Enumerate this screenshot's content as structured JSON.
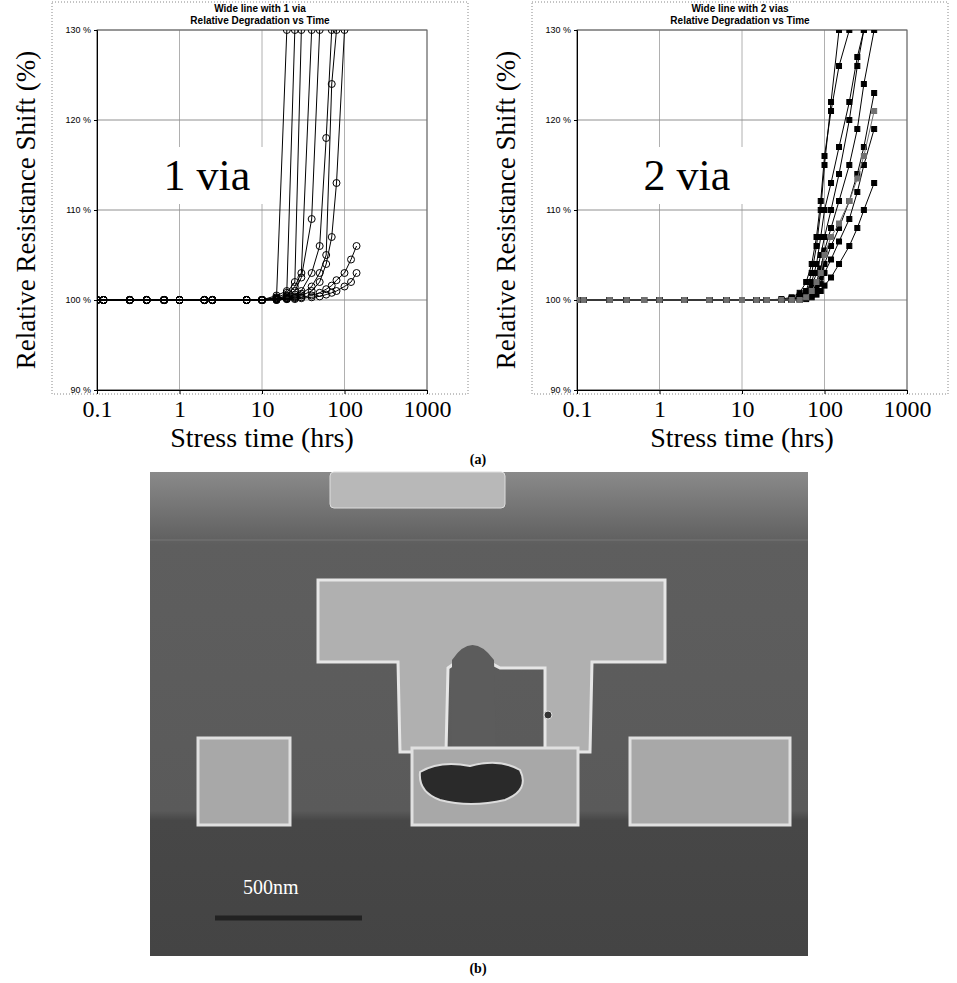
{
  "chart_data": [
    {
      "type": "line",
      "title": "Wide line with 1 via",
      "subtitle": "Relative Degradation vs Time",
      "annotations": [
        "1 via"
      ],
      "xlabel": "Stress time (hrs)",
      "ylabel": "Relative Resistance Shift (%)",
      "log": "x",
      "grid": true,
      "marker": "open-circle",
      "line_style": "solid",
      "xlim": [
        0.1,
        1000
      ],
      "xticks": [
        0.1,
        1,
        10,
        100,
        1000
      ],
      "ylim": [
        90,
        130
      ],
      "yticks": [
        {
          "value": 90,
          "label": "90 %"
        },
        {
          "value": 100,
          "label": "100 %"
        },
        {
          "value": 110,
          "label": "110 %"
        },
        {
          "value": 120,
          "label": "120 %"
        },
        {
          "value": 130,
          "label": "130 %"
        }
      ],
      "x": [
        0.1,
        0.12,
        0.25,
        0.4,
        0.65,
        1,
        2,
        2.5,
        6.5,
        10,
        15,
        20,
        25,
        30,
        40,
        50,
        60,
        70,
        80,
        100,
        120,
        140
      ],
      "series": [
        {
          "color": "#000000",
          "values": [
            100,
            100,
            100,
            100,
            100,
            100,
            100,
            100,
            100,
            100,
            100.3,
            130,
            null,
            null,
            null,
            null,
            null,
            null,
            null,
            null,
            null,
            null
          ]
        },
        {
          "color": "#000000",
          "values": [
            100,
            100,
            100,
            100,
            100,
            100,
            100,
            100,
            100,
            100,
            100.5,
            101,
            130,
            null,
            null,
            null,
            null,
            null,
            null,
            null,
            null,
            null
          ]
        },
        {
          "color": "#000000",
          "values": [
            100,
            100,
            100,
            100,
            100,
            100,
            100,
            100,
            100,
            100,
            100.2,
            100.8,
            102,
            130,
            null,
            null,
            null,
            null,
            null,
            null,
            null,
            null
          ]
        },
        {
          "color": "#000000",
          "values": [
            100,
            100,
            100,
            100,
            100,
            100,
            100,
            100,
            100,
            100,
            100.1,
            100.5,
            101.5,
            103,
            130,
            null,
            null,
            null,
            null,
            null,
            null,
            null
          ]
        },
        {
          "color": "#000000",
          "values": [
            100,
            100,
            100,
            100,
            100,
            100,
            100,
            100,
            100,
            100,
            100.2,
            100.4,
            101,
            102.5,
            109,
            130,
            null,
            null,
            null,
            null,
            null,
            null
          ]
        },
        {
          "color": "#000000",
          "values": [
            100,
            100,
            100,
            100,
            100,
            100,
            100,
            100,
            100,
            100,
            100.1,
            100.3,
            100.6,
            101,
            103,
            106,
            118,
            130,
            null,
            null,
            null,
            null
          ]
        },
        {
          "color": "#000000",
          "values": [
            100,
            100,
            100,
            100,
            100,
            100,
            100,
            100,
            100,
            100,
            100.1,
            100.2,
            100.4,
            100.7,
            101.5,
            103,
            105,
            124,
            130,
            null,
            null,
            null
          ]
        },
        {
          "color": "#000000",
          "values": [
            100,
            100,
            100,
            100,
            100,
            100,
            100,
            100,
            100,
            100,
            100.1,
            100.2,
            100.3,
            100.5,
            101,
            102,
            104,
            107,
            113,
            130,
            null,
            null
          ]
        },
        {
          "color": "#000000",
          "values": [
            100,
            100,
            100,
            100,
            100,
            100,
            100,
            100,
            100,
            100,
            100,
            100.1,
            100.2,
            100.3,
            100.5,
            100.8,
            101.2,
            101.6,
            102.2,
            103,
            104.5,
            106
          ]
        },
        {
          "color": "#000000",
          "values": [
            100,
            100,
            100,
            100,
            100,
            100,
            100,
            100,
            100,
            100,
            100,
            100.1,
            100.1,
            100.2,
            100.3,
            100.4,
            100.6,
            100.8,
            101,
            101.5,
            102,
            103
          ]
        }
      ]
    },
    {
      "type": "line",
      "title": "Wide line with 2 vias",
      "subtitle": "Relative Degradation vs Time",
      "annotations": [
        "2 via"
      ],
      "xlabel": "Stress time (hrs)",
      "ylabel": "Relative Resistance Shift (%)",
      "log": "x",
      "grid": true,
      "marker": "square",
      "line_style": "solid",
      "xlim": [
        0.1,
        1000
      ],
      "xticks": [
        0.1,
        1,
        10,
        100,
        1000
      ],
      "ylim": [
        90,
        130
      ],
      "yticks": [
        {
          "value": 90,
          "label": "90 %"
        },
        {
          "value": 100,
          "label": "100 %"
        },
        {
          "value": 110,
          "label": "110 %"
        },
        {
          "value": 120,
          "label": "120 %"
        },
        {
          "value": 130,
          "label": "130 %"
        }
      ],
      "x": [
        0.1,
        0.12,
        0.25,
        0.4,
        0.65,
        1,
        2,
        4,
        6.5,
        10,
        15,
        20,
        30,
        40,
        50,
        60,
        70,
        80,
        90,
        100,
        120,
        150,
        200,
        250,
        300,
        400
      ],
      "series": [
        {
          "color": "#000000",
          "values": [
            100,
            100,
            100,
            100,
            100,
            100,
            100,
            100,
            100,
            100,
            100,
            100,
            100,
            100.2,
            100.5,
            101,
            103,
            106,
            110,
            115,
            122,
            130,
            null,
            null,
            null,
            null
          ]
        },
        {
          "color": "#000000",
          "values": [
            100,
            100,
            100,
            100,
            100,
            100,
            100,
            100,
            100,
            100,
            100,
            100,
            100,
            100.1,
            100.3,
            100.6,
            101.5,
            103,
            105,
            107,
            110,
            114,
            120,
            126,
            130,
            null
          ]
        },
        {
          "color": "#000000",
          "values": [
            100,
            100,
            100,
            100,
            100,
            100,
            100,
            100,
            100,
            100,
            100,
            100,
            100,
            100,
            100.2,
            100.4,
            100.8,
            101.5,
            102.5,
            104,
            106,
            108,
            111,
            114,
            117,
            123
          ]
        },
        {
          "color": "#000000",
          "values": [
            100,
            100,
            100,
            100,
            100,
            100,
            100,
            100,
            100,
            100,
            100,
            100,
            100,
            100.1,
            100.4,
            101,
            102,
            104,
            107,
            110,
            113,
            117,
            122,
            127,
            130,
            null
          ]
        },
        {
          "color": "#000000",
          "values": [
            100,
            100,
            100,
            100,
            100,
            100,
            100,
            100,
            100,
            100,
            100,
            100,
            100,
            100,
            100.1,
            100.3,
            100.6,
            101,
            101.8,
            103,
            104.5,
            106.5,
            109,
            112,
            115,
            119
          ]
        },
        {
          "color": "#000000",
          "values": [
            100,
            100,
            100,
            100,
            100,
            100,
            100,
            100,
            100,
            100,
            100,
            100,
            100.1,
            100.3,
            100.8,
            102,
            104,
            107,
            111,
            116,
            121,
            126,
            130,
            null,
            null,
            null
          ]
        },
        {
          "color": "#000000",
          "values": [
            100,
            100,
            100,
            100,
            100,
            100,
            100,
            100,
            100,
            100,
            100,
            100,
            100,
            100.1,
            100.2,
            100.5,
            101,
            102,
            103.5,
            105.5,
            108,
            111,
            115,
            119,
            124,
            130
          ]
        },
        {
          "color": "#000000",
          "values": [
            100,
            100,
            100,
            100,
            100,
            100,
            100,
            100,
            100,
            100,
            100,
            100,
            100,
            100,
            100,
            100.1,
            100.3,
            100.6,
            101,
            101.6,
            102.5,
            104,
            106,
            108,
            110,
            113
          ]
        },
        {
          "color": "#707070",
          "values": [
            100,
            100,
            100,
            100,
            100,
            100,
            100,
            100,
            100,
            100,
            100,
            100,
            100,
            100,
            100,
            100.3,
            101,
            102,
            103,
            105,
            107,
            108.5,
            111,
            113.5,
            116,
            121
          ]
        }
      ]
    }
  ],
  "figure": {
    "panel_labels": [
      "(a)",
      "(b)"
    ],
    "image": {
      "scale_bar": "500nm"
    }
  }
}
